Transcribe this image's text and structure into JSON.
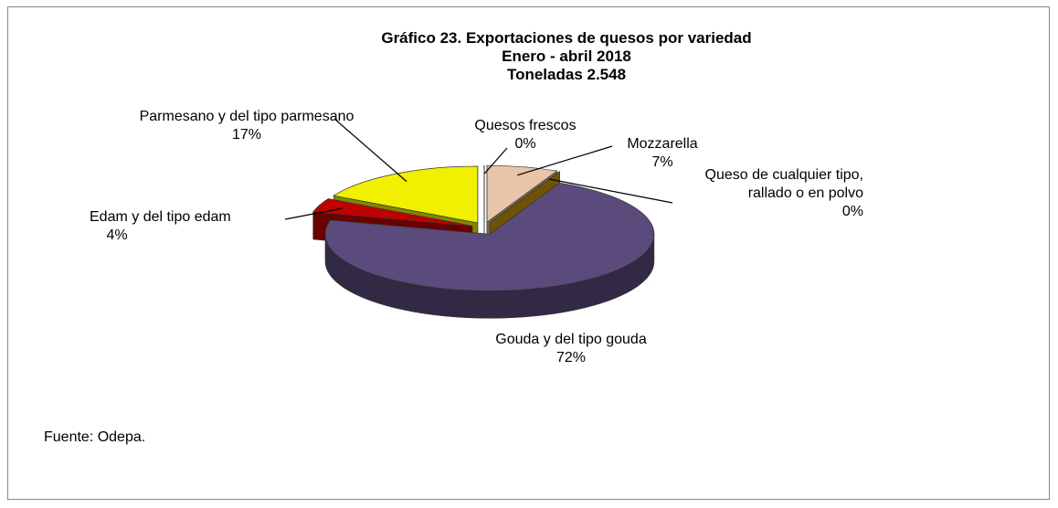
{
  "chart_data": {
    "type": "pie3d",
    "title": "Gráfico 23. Exportaciones de quesos por variedad",
    "subtitle": [
      "Enero - abril 2018",
      "Toneladas 2.548"
    ],
    "categories": [
      "Quesos frescos",
      "Mozzarella",
      "Queso de cualquier tipo, rallado o en polvo",
      "Gouda y del tipo gouda",
      "Edam y del tipo edam",
      "Parmesano y del tipo parmesano"
    ],
    "values": [
      0,
      7,
      0,
      72,
      4,
      17
    ],
    "value_labels": [
      "0%",
      "7%",
      "0%",
      "72%",
      "4%",
      "17%"
    ],
    "colors": [
      "#ffffff",
      "#e8c4a8",
      "#c8960a",
      "#5b4a7c",
      "#c00000",
      "#f0f000"
    ],
    "source": "Fuente: Odepa."
  }
}
